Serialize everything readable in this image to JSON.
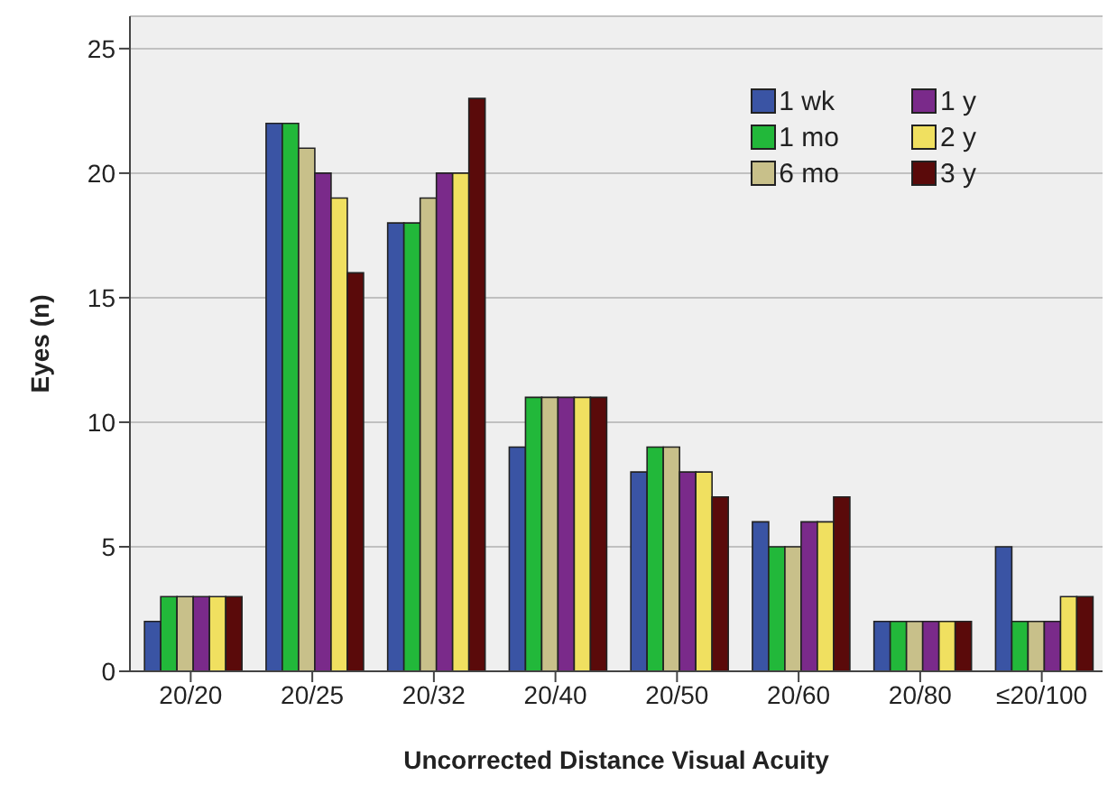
{
  "chart_data": {
    "type": "bar",
    "xlabel": "Uncorrected Distance Visual Acuity",
    "ylabel": "Eyes (n)",
    "categories": [
      "20/20",
      "20/25",
      "20/32",
      "20/40",
      "20/50",
      "20/60",
      "20/80",
      "≤20/100"
    ],
    "series": [
      {
        "name": "1 wk",
        "color": "#3a54a4",
        "values": [
          2,
          22,
          18,
          9,
          8,
          6,
          2,
          5
        ]
      },
      {
        "name": "1 mo",
        "color": "#22b83a",
        "values": [
          3,
          22,
          18,
          11,
          9,
          5,
          2,
          2
        ]
      },
      {
        "name": "6 mo",
        "color": "#c8c08a",
        "values": [
          3,
          21,
          19,
          11,
          9,
          5,
          2,
          2
        ]
      },
      {
        "name": "1 y",
        "color": "#7a2a8a",
        "values": [
          3,
          20,
          20,
          11,
          8,
          6,
          2,
          2
        ]
      },
      {
        "name": "2 y",
        "color": "#f0e060",
        "values": [
          3,
          19,
          20,
          11,
          8,
          6,
          2,
          3
        ]
      },
      {
        "name": "3 y",
        "color": "#5a0a0a",
        "values": [
          3,
          16,
          23,
          11,
          7,
          7,
          2,
          3
        ]
      }
    ],
    "ylim": [
      0,
      26.3
    ],
    "yticks": [
      0,
      5,
      10,
      15,
      20,
      25
    ],
    "grid": "y",
    "legend": "top right"
  }
}
